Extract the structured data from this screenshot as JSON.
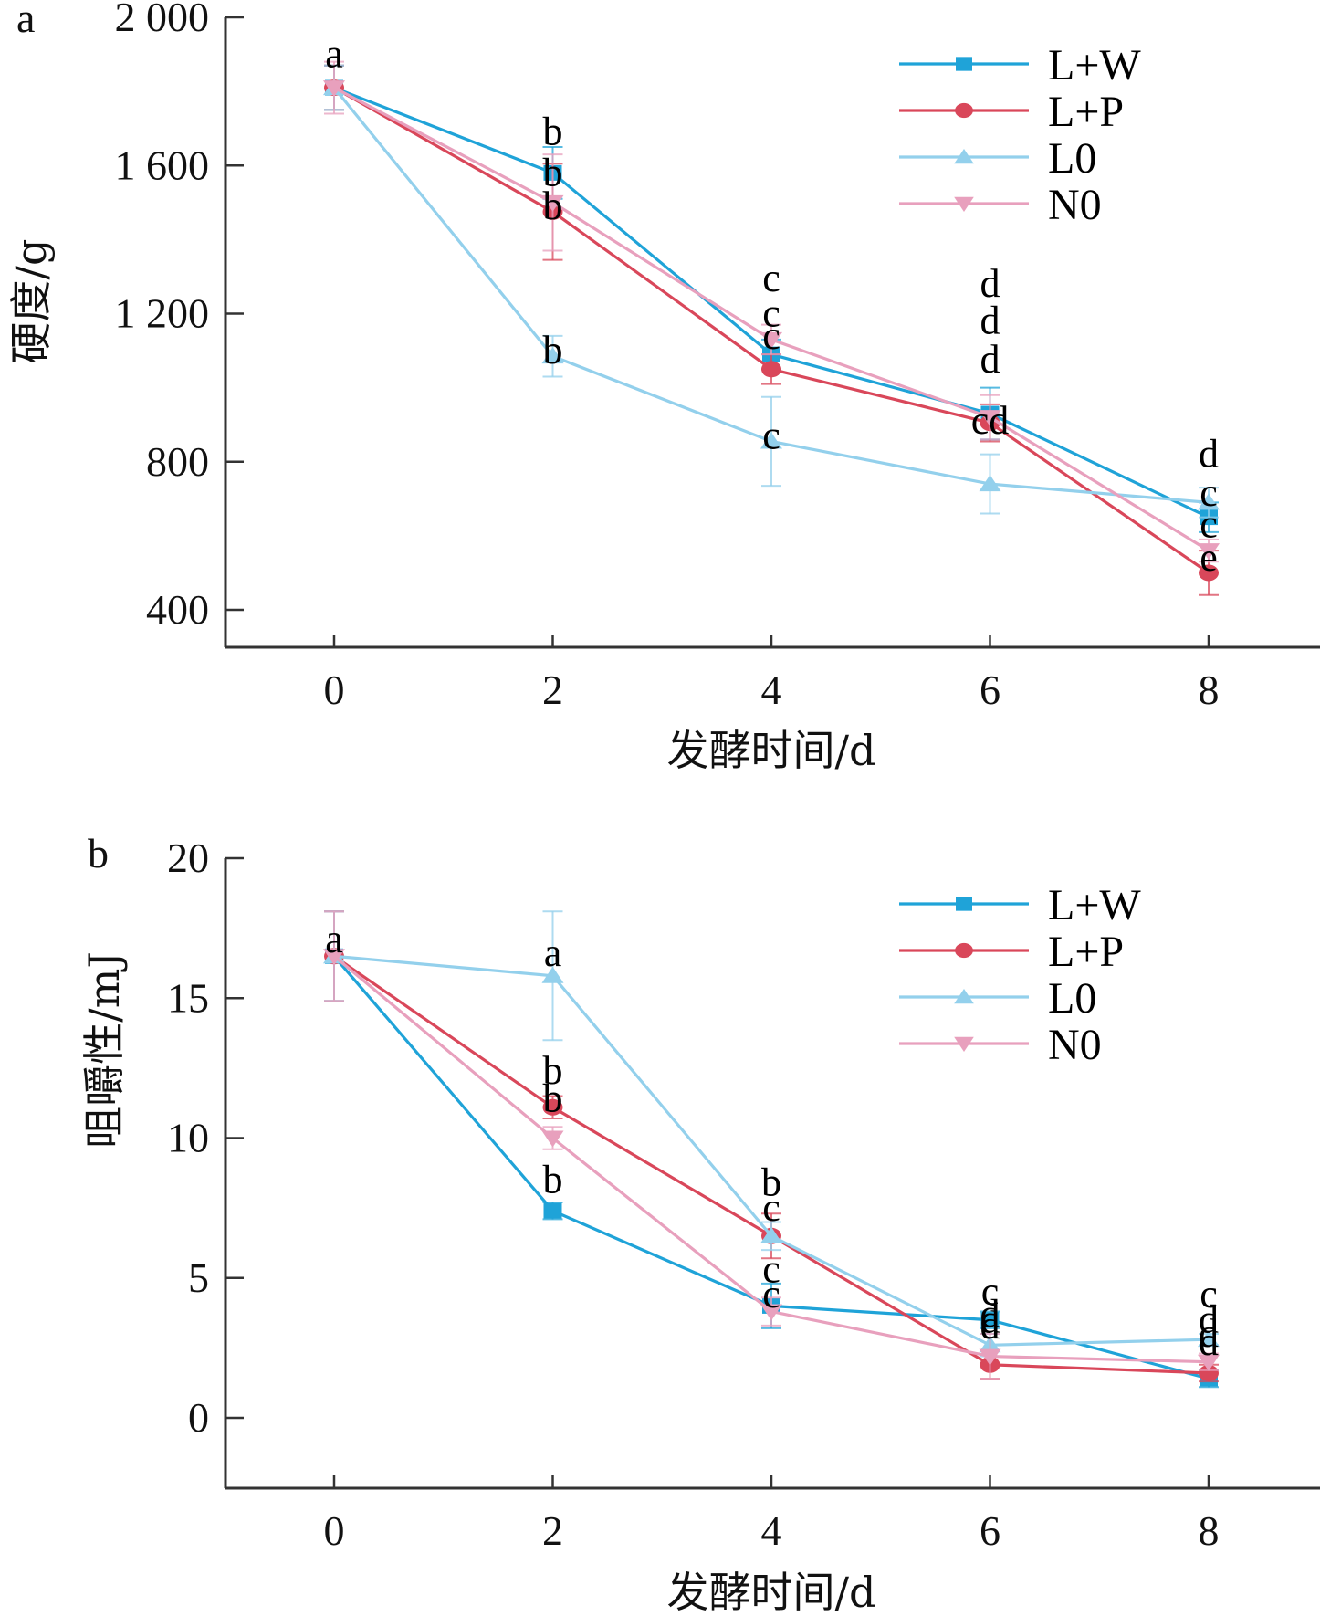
{
  "chart_data": [
    {
      "type": "line",
      "panel_label": "a",
      "title": "",
      "xlabel": "发酵时间/d",
      "ylabel": "硬度/g",
      "x": [
        0,
        2,
        4,
        6,
        8
      ],
      "x_ticks": [
        "0",
        "2",
        "4",
        "6",
        "8"
      ],
      "y_ticks": [
        {
          "value": 400,
          "label": "400"
        },
        {
          "value": 800,
          "label": "800"
        },
        {
          "value": 1200,
          "label": "1 200"
        },
        {
          "value": 1600,
          "label": "1 600"
        },
        {
          "value": 2000,
          "label": "2 000"
        }
      ],
      "ylim": [
        300,
        2000
      ],
      "xlim": [
        -1,
        9.2
      ],
      "grid": false,
      "legend_position": "top-right",
      "series": [
        {
          "name": "L+W",
          "color": "#1fa3d8",
          "marker": "square",
          "values": [
            1810,
            1580,
            1090,
            930,
            650
          ],
          "errors": [
            60,
            70,
            40,
            70,
            40
          ]
        },
        {
          "name": "L+P",
          "color": "#d9475a",
          "marker": "circle",
          "values": [
            1810,
            1475,
            1050,
            905,
            500
          ],
          "errors": [
            60,
            130,
            40,
            50,
            60
          ]
        },
        {
          "name": "L0",
          "color": "#93d0ec",
          "marker": "triangle-up",
          "values": [
            1810,
            1085,
            855,
            740,
            690
          ],
          "errors": [
            60,
            55,
            120,
            80,
            40
          ]
        },
        {
          "name": "N0",
          "color": "#e8a0bd",
          "marker": "triangle-down",
          "values": [
            1810,
            1500,
            1130,
            920,
            560
          ],
          "errors": [
            70,
            130,
            40,
            60,
            30
          ]
        }
      ],
      "annotations": [
        {
          "x": 0,
          "labels": [
            "a"
          ]
        },
        {
          "x": 2,
          "labels": [
            "b",
            "b",
            "b",
            "b"
          ]
        },
        {
          "x": 4,
          "labels": [
            "c",
            "c",
            "c",
            "c"
          ]
        },
        {
          "x": 6,
          "labels": [
            "d",
            "d",
            "d",
            "cd"
          ]
        },
        {
          "x": 8,
          "labels": [
            "d",
            "c",
            "c",
            "e"
          ]
        }
      ]
    },
    {
      "type": "line",
      "panel_label": "b",
      "title": "",
      "xlabel": "发酵时间/d",
      "ylabel": "咀嚼性/mJ",
      "x": [
        0,
        2,
        4,
        6,
        8
      ],
      "x_ticks": [
        "0",
        "2",
        "4",
        "6",
        "8"
      ],
      "y_ticks": [
        {
          "value": 0,
          "label": "0"
        },
        {
          "value": 5,
          "label": "5"
        },
        {
          "value": 10,
          "label": "10"
        },
        {
          "value": 15,
          "label": "15"
        },
        {
          "value": 20,
          "label": "20"
        }
      ],
      "ylim": [
        -2.5,
        20
      ],
      "xlim": [
        -1,
        9.2
      ],
      "grid": false,
      "legend_position": "top-right",
      "series": [
        {
          "name": "L+W",
          "color": "#1fa3d8",
          "marker": "square",
          "values": [
            16.5,
            7.4,
            4.0,
            3.5,
            1.4
          ],
          "errors": [
            1.6,
            0.3,
            0.8,
            0.3,
            0.3
          ]
        },
        {
          "name": "L+P",
          "color": "#d9475a",
          "marker": "circle",
          "values": [
            16.5,
            11.1,
            6.5,
            1.9,
            1.6
          ],
          "errors": [
            1.6,
            0.4,
            0.8,
            0.5,
            0.3
          ]
        },
        {
          "name": "L0",
          "color": "#93d0ec",
          "marker": "triangle-up",
          "values": [
            16.5,
            15.8,
            6.5,
            2.6,
            2.8
          ],
          "errors": [
            1.6,
            2.3,
            0.5,
            0.4,
            0.2
          ]
        },
        {
          "name": "N0",
          "color": "#e8a0bd",
          "marker": "triangle-down",
          "values": [
            16.5,
            10.0,
            3.8,
            2.2,
            2.0
          ],
          "errors": [
            1.6,
            0.4,
            0.5,
            0.8,
            0.3
          ]
        }
      ],
      "annotations": [
        {
          "x": 0,
          "labels": [
            "a"
          ]
        },
        {
          "x": 2,
          "labels": [
            "a",
            "b",
            "b",
            "b"
          ]
        },
        {
          "x": 4,
          "labels": [
            "b",
            "c",
            "c",
            "c"
          ]
        },
        {
          "x": 6,
          "labels": [
            "c",
            "d",
            "d",
            "d"
          ]
        },
        {
          "x": 8,
          "labels": [
            "c",
            "d",
            "d",
            "d"
          ]
        }
      ]
    }
  ]
}
